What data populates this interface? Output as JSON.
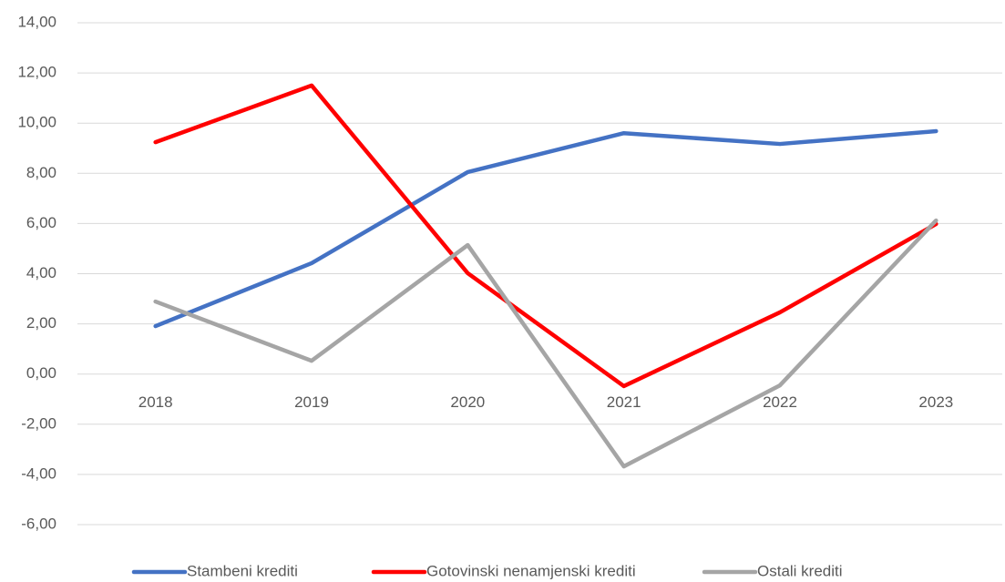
{
  "chart_data": {
    "type": "line",
    "categories": [
      "2018",
      "2019",
      "2020",
      "2021",
      "2022",
      "2023"
    ],
    "series": [
      {
        "name": "Stambeni krediti",
        "color": "#4472c4",
        "values": [
          1.91,
          4.42,
          8.05,
          9.6,
          9.17,
          9.68
        ]
      },
      {
        "name": "Gotovinski nenamjenski krediti",
        "color": "#ff0000",
        "values": [
          9.24,
          11.5,
          4.02,
          -0.48,
          2.46,
          5.98
        ]
      },
      {
        "name": "Ostali krediti",
        "color": "#a5a5a5",
        "values": [
          2.89,
          0.53,
          5.14,
          -3.68,
          -0.45,
          6.12
        ]
      }
    ],
    "ylim": [
      -6,
      14
    ],
    "yticks": [
      {
        "value": -6,
        "label": "-6,00"
      },
      {
        "value": -4,
        "label": "-4,00"
      },
      {
        "value": -2,
        "label": "-2,00"
      },
      {
        "value": 0,
        "label": "0,00"
      },
      {
        "value": 2,
        "label": "2,00"
      },
      {
        "value": 4,
        "label": "4,00"
      },
      {
        "value": 6,
        "label": "6,00"
      },
      {
        "value": 8,
        "label": "8,00"
      },
      {
        "value": 10,
        "label": "10,00"
      },
      {
        "value": 12,
        "label": "12,00"
      },
      {
        "value": 14,
        "label": "14,00"
      }
    ],
    "grid": true,
    "legend": "bottom"
  }
}
